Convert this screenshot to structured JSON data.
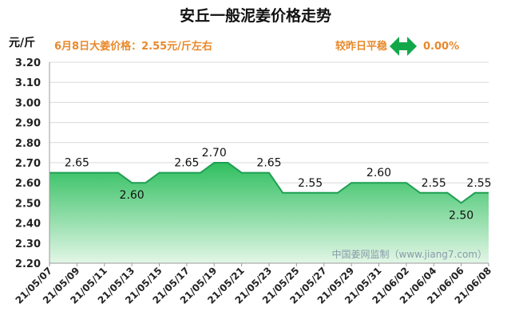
{
  "header": {
    "title": "安丘一般泥姜价格走势",
    "unit": "元/斤",
    "price_note": "6月8日大姜价格：2.55元/斤左右",
    "compare_label": "较昨日平稳",
    "change": "0.00%",
    "watermark": "中国姜网监制（www.jiang7.com）"
  },
  "colors": {
    "accent_orange": "#e8892b",
    "line_green": "#1f9e52",
    "fill_top": "#2fbf5f",
    "fill_bottom": "#e2f6e6",
    "arrow_green": "#12a84a"
  },
  "chart_data": {
    "type": "area",
    "title": "安丘一般泥姜价格走势",
    "ylabel": "元/斤",
    "xlabel": "",
    "ylim": [
      2.2,
      3.2
    ],
    "yticks": [
      "2.20",
      "2.30",
      "2.40",
      "2.50",
      "2.60",
      "2.70",
      "2.80",
      "2.90",
      "3.00",
      "3.10",
      "3.20"
    ],
    "x_tick_labels": [
      "21/05/07",
      "21/05/09",
      "21/05/11",
      "21/05/13",
      "21/05/15",
      "21/05/17",
      "21/05/19",
      "21/05/21",
      "21/05/23",
      "21/05/25",
      "21/05/27",
      "21/05/29",
      "21/05/31",
      "21/06/02",
      "21/06/04",
      "21/06/06",
      "21/06/08"
    ],
    "x": [
      "21/05/07",
      "21/05/08",
      "21/05/09",
      "21/05/10",
      "21/05/11",
      "21/05/12",
      "21/05/13",
      "21/05/14",
      "21/05/15",
      "21/05/16",
      "21/05/17",
      "21/05/18",
      "21/05/19",
      "21/05/20",
      "21/05/21",
      "21/05/22",
      "21/05/23",
      "21/05/24",
      "21/05/25",
      "21/05/26",
      "21/05/27",
      "21/05/28",
      "21/05/29",
      "21/05/30",
      "21/05/31",
      "21/06/01",
      "21/06/02",
      "21/06/03",
      "21/06/04",
      "21/06/05",
      "21/06/06",
      "21/06/07",
      "21/06/08"
    ],
    "values": [
      2.65,
      2.65,
      2.65,
      2.65,
      2.65,
      2.65,
      2.6,
      2.6,
      2.65,
      2.65,
      2.65,
      2.65,
      2.7,
      2.7,
      2.65,
      2.65,
      2.65,
      2.55,
      2.55,
      2.55,
      2.55,
      2.55,
      2.6,
      2.6,
      2.6,
      2.6,
      2.6,
      2.55,
      2.55,
      2.55,
      2.5,
      2.55,
      2.55
    ],
    "data_labels": [
      {
        "x": "21/05/09",
        "text": "2.65",
        "pos": "above"
      },
      {
        "x": "21/05/13",
        "text": "2.60",
        "pos": "below"
      },
      {
        "x": "21/05/17",
        "text": "2.65",
        "pos": "above"
      },
      {
        "x": "21/05/19",
        "text": "2.70",
        "pos": "above"
      },
      {
        "x": "21/05/23",
        "text": "2.65",
        "pos": "above"
      },
      {
        "x": "21/05/26",
        "text": "2.55",
        "pos": "above"
      },
      {
        "x": "21/05/31",
        "text": "2.60",
        "pos": "above"
      },
      {
        "x": "21/06/04",
        "text": "2.55",
        "pos": "above"
      },
      {
        "x": "21/06/06",
        "text": "2.50",
        "pos": "below"
      },
      {
        "x": "21/06/08",
        "text": "2.55",
        "pos": "above"
      }
    ],
    "grid": true
  }
}
